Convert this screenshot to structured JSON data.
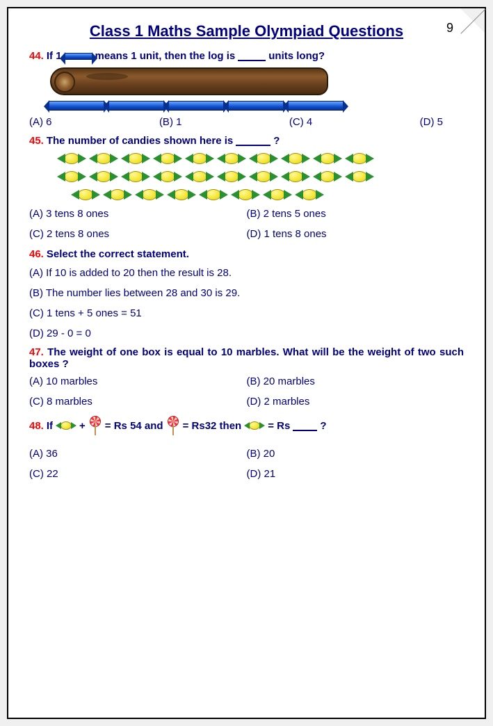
{
  "page_number": "9",
  "title": "Class 1 Maths Sample Olympiad Questions",
  "colors": {
    "title": "#000080",
    "text": "#000080",
    "qnum": "#ff0000",
    "background": "#ffffff"
  },
  "q44": {
    "num": "44.",
    "text_a": "If 1",
    "text_b": "means 1 unit, then the log is",
    "text_c": "units long?",
    "crayon_segments_below_log": 5,
    "options": {
      "a": "(A)  6",
      "b": "(B)  1",
      "c": "(C)  4",
      "d": "(D) 5"
    }
  },
  "q45": {
    "num": "45.",
    "text_a": "The number of candies shown here is",
    "text_b": "?",
    "rows": [
      10,
      10,
      8
    ],
    "options": {
      "a": "(A)  3 tens 8 ones",
      "b": "(B)  2 tens 5 ones",
      "c": "(C)   2 tens 8 ones",
      "d": "(D)  1 tens 8 ones"
    }
  },
  "q46": {
    "num": "46.",
    "text": "Select the correct statement.",
    "options": {
      "a": "(A) If 10 is added to 20 then the result is 28.",
      "b": "(B) The number lies between 28 and 30 is 29.",
      "c": "(C) 1 tens + 5 ones = 51",
      "d": "(D)  29 - 0 = 0"
    }
  },
  "q47": {
    "num": "47.",
    "text": "The weight of one box is equal to 10 marbles. What will be the weight of two such boxes ?",
    "options": {
      "a": "(A)  10 marbles",
      "b": "(B)  20 marbles",
      "c": "(C)   8  marbles",
      "d": "(D)  2 marbles"
    }
  },
  "q48": {
    "num": "48.",
    "text_a": "If",
    "text_b": "+",
    "text_c": "= Rs 54  and",
    "text_d": "= Rs32 then",
    "text_e": "=  Rs",
    "text_f": "?",
    "options": {
      "a": "(A)  36",
      "b": "(B)  20",
      "c": "(C)   22",
      "d": "(D)  21"
    }
  }
}
